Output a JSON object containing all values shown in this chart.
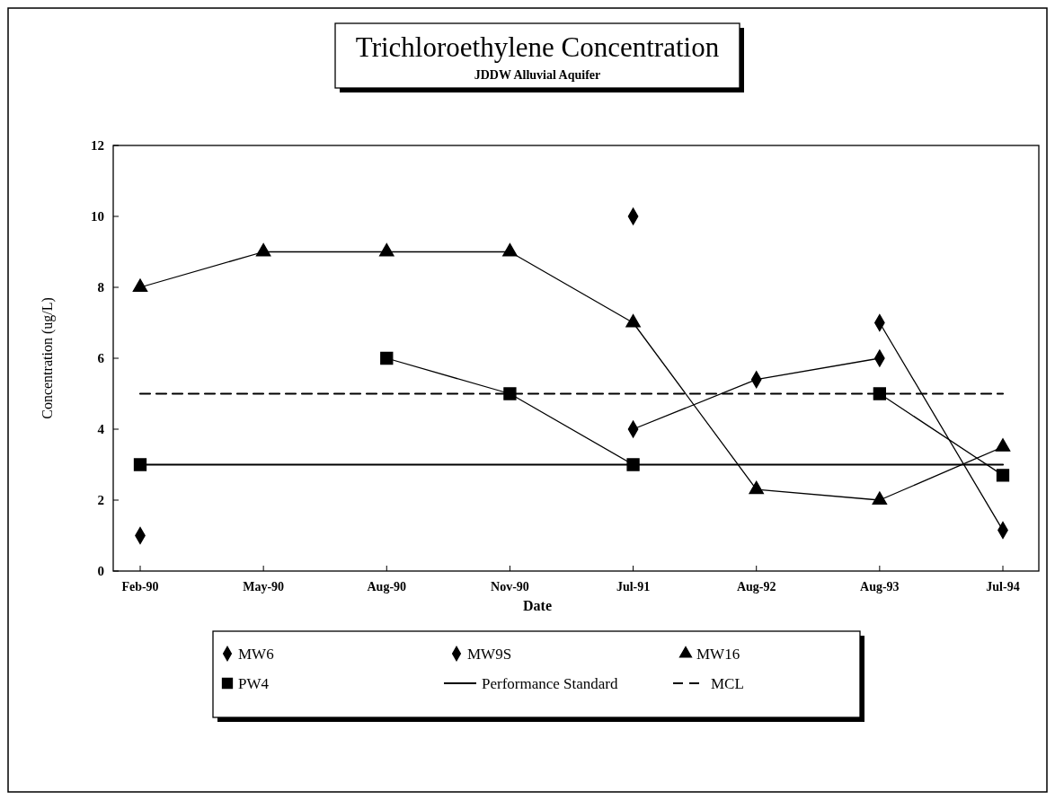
{
  "chart_data": {
    "type": "line",
    "title": "Trichloroethylene Concentration",
    "subtitle": "JDDW Alluvial Aquifer",
    "xlabel": "Date",
    "ylabel": "Concentration (ug/L)",
    "categories": [
      "Feb-90",
      "May-90",
      "Aug-90",
      "Nov-90",
      "Jul-91",
      "Aug-92",
      "Aug-93",
      "Jul-94"
    ],
    "ylim": [
      0,
      12
    ],
    "yticks": [
      0,
      2,
      4,
      6,
      8,
      10,
      12
    ],
    "grid": false,
    "legend": "bottom",
    "series": [
      {
        "name": "MW6",
        "color": "#000000",
        "marker": "diamond",
        "line_style": "solid",
        "values": [
          null,
          null,
          null,
          null,
          10,
          null,
          7,
          1.15
        ]
      },
      {
        "name": "MW9S",
        "color": "#000000",
        "marker": "diamond",
        "line_style": "solid",
        "values": [
          1,
          null,
          null,
          null,
          4,
          5.4,
          6,
          null
        ]
      },
      {
        "name": "MW16",
        "color": "#000000",
        "marker": "triangle",
        "line_style": "solid",
        "values": [
          8,
          9,
          9,
          9,
          7,
          2.3,
          2,
          3.5
        ]
      },
      {
        "name": "PW4",
        "color": "#000000",
        "marker": "square",
        "line_style": "solid",
        "values": [
          3,
          null,
          6,
          5,
          3,
          null,
          5,
          2.7
        ]
      },
      {
        "name": "Performance Standard",
        "color": "#000000",
        "marker": "none",
        "line_style": "solid",
        "values": [
          3,
          3,
          3,
          3,
          3,
          3,
          3,
          3
        ]
      },
      {
        "name": "MCL",
        "color": "#000000",
        "marker": "none",
        "line_style": "dashed",
        "values": [
          5,
          5,
          5,
          5,
          5,
          5,
          5,
          5
        ]
      }
    ]
  }
}
